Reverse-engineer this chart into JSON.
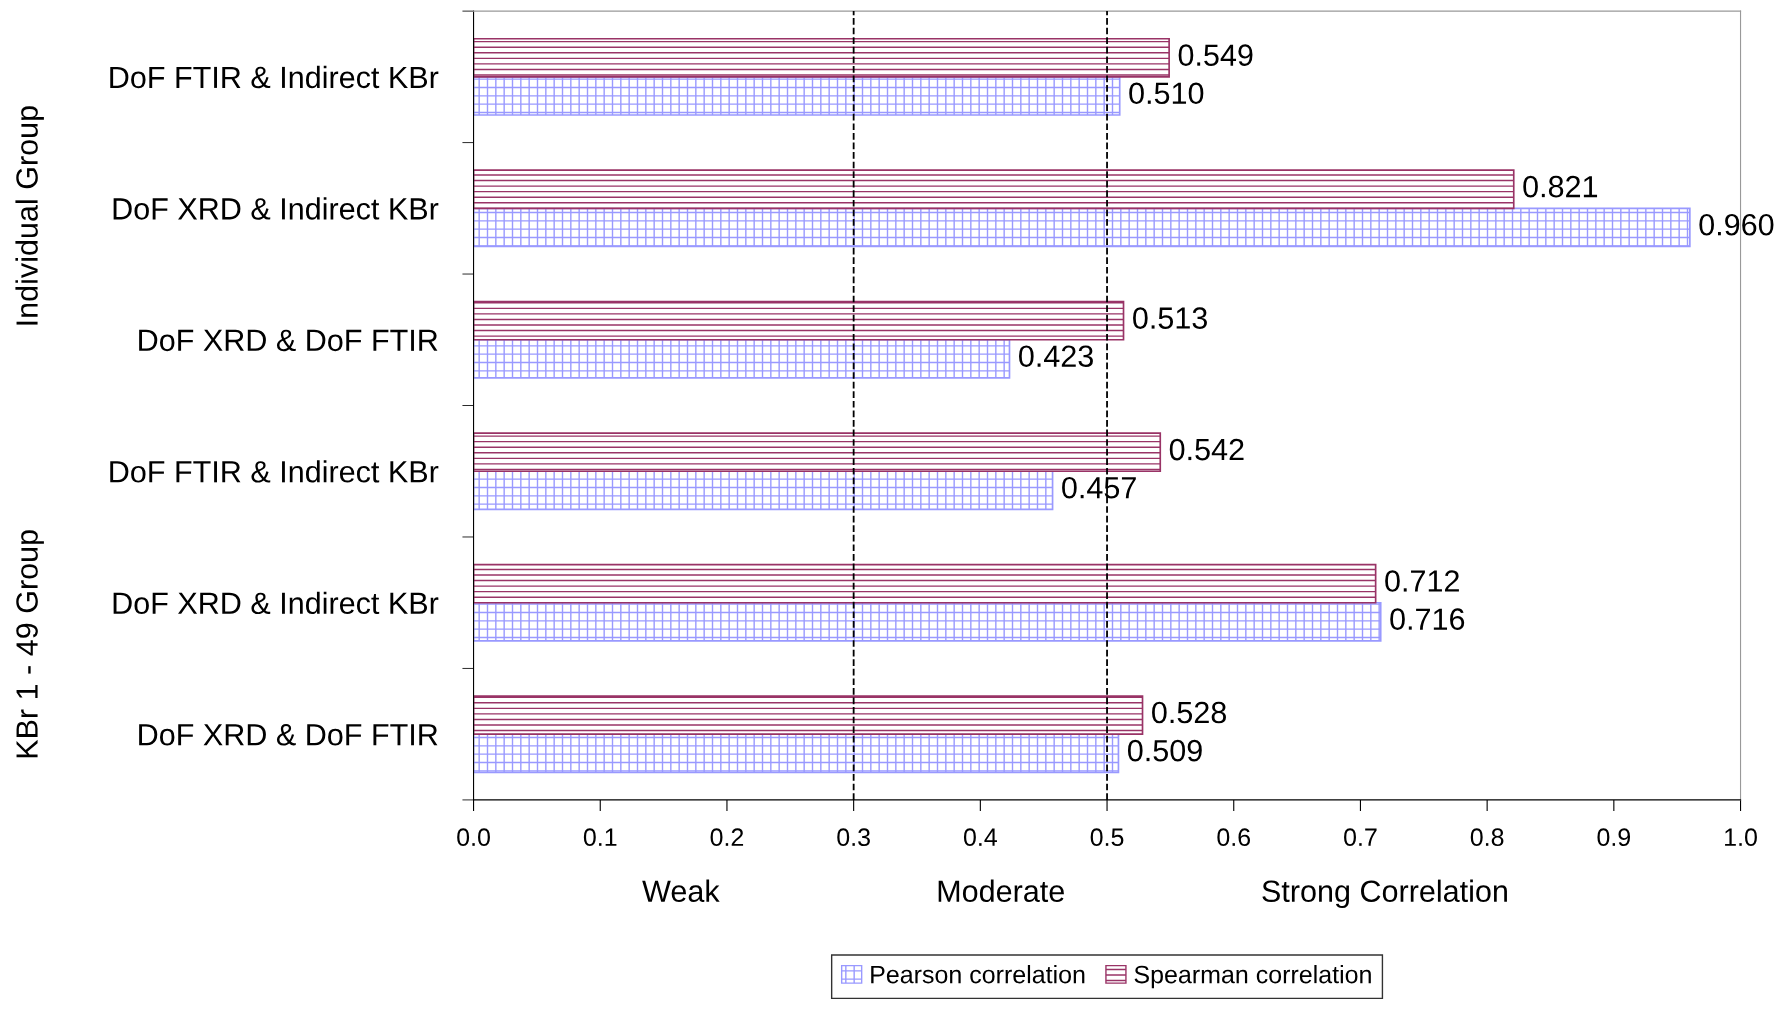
{
  "chart_data": {
    "type": "bar",
    "orientation": "horizontal",
    "categories": [
      "DoF FTIR & Indirect KBr",
      "DoF XRD & Indirect KBr",
      "DoF XRD & DoF FTIR",
      "DoF FTIR & Indirect KBr",
      "DoF XRD & Indirect KBr",
      "DoF XRD & DoF FTIR"
    ],
    "series": [
      {
        "name": "Pearson correlation",
        "color": "#9999ff",
        "values": [
          0.51,
          0.96,
          0.423,
          0.457,
          0.716,
          0.509
        ],
        "value_labels": [
          "0.510",
          "0.960",
          "0.423",
          "0.457",
          "0.716",
          "0.509"
        ]
      },
      {
        "name": "Spearman correlation",
        "color": "#993366",
        "values": [
          0.549,
          0.821,
          0.513,
          0.542,
          0.712,
          0.528
        ],
        "value_labels": [
          "0.549",
          "0.821",
          "0.513",
          "0.542",
          "0.712",
          "0.528"
        ]
      }
    ],
    "xlim": [
      0,
      1
    ],
    "xticks": [
      {
        "value": 0,
        "label": "0.0"
      },
      0.1,
      0.2,
      0.3,
      0.4,
      0.5,
      0.6,
      0.7,
      0.8,
      0.9,
      {
        "value": 1,
        "label": "1.0"
      }
    ],
    "ref_lines": [
      {
        "axis": "x",
        "value": 0.3,
        "label": null,
        "color": "#000000",
        "line_style": "dashed"
      },
      {
        "axis": "x",
        "value": 0.5,
        "label": null,
        "color": "#000000",
        "line_style": "dashed"
      }
    ],
    "annotations": [
      "Individual Group",
      "KBr 1 - 49 Group",
      "Weak",
      "Moderate",
      "Strong Correlation"
    ],
    "legend": "bottom",
    "grid": false
  }
}
